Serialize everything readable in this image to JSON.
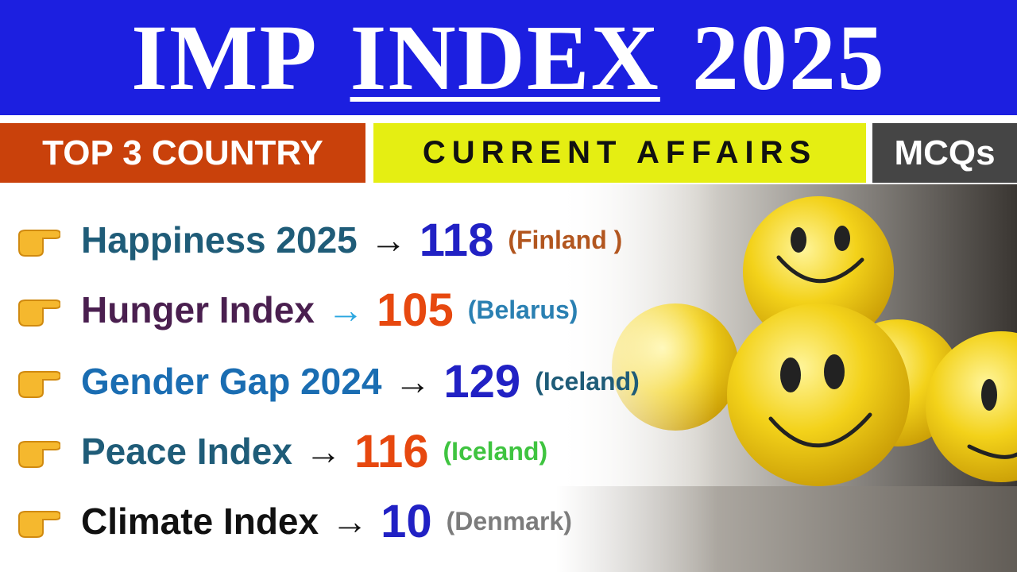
{
  "header": {
    "title_parts": [
      "IMP",
      "INDEX",
      "2025"
    ]
  },
  "tags": [
    "TOP 3 COUNTRY",
    "CURRENT AFFAIRS",
    "MCQs"
  ],
  "items": [
    {
      "label": "Happiness 2025",
      "arrow": "→",
      "number": "118",
      "country": "(Finland )"
    },
    {
      "label": "Hunger Index",
      "arrow": "→",
      "number": "105",
      "country": "(Belarus)"
    },
    {
      "label": "Gender Gap 2024",
      "arrow": "→",
      "number": "129",
      "country": "(Iceland)"
    },
    {
      "label": "Peace Index",
      "arrow": "→",
      "number": "116",
      "country": "(Iceland)"
    },
    {
      "label": "Climate Index",
      "arrow": "→",
      "number": "10",
      "country": "(Denmark)"
    }
  ]
}
